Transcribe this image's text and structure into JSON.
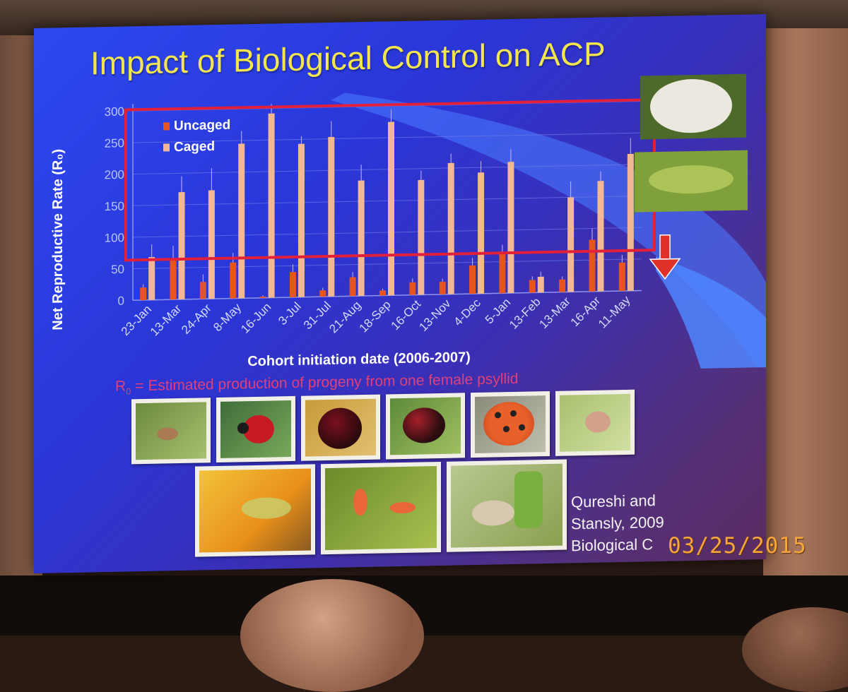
{
  "slide": {
    "title": "Impact of Biological Control on ACP",
    "definition": "R",
    "definition_sub": "0",
    "definition_rest": " = Estimated production of progeny from one female psyllid",
    "citation_line1": "Qureshi and",
    "citation_line2": "Stansly, 2009",
    "citation_line3": "Biological C",
    "datestamp": "03/25/2015"
  },
  "colors": {
    "uncaged": "#e8541e",
    "caged": "#f1b893",
    "highlight_box": "#e2203a",
    "arrow": "#e0302a",
    "title": "#f3e54d"
  },
  "chart_data": {
    "type": "bar",
    "ylabel": "Net Reproductive Rate (R₀)",
    "xlabel": "Cohort initiation date (2006-2007)",
    "ylim": [
      0,
      300
    ],
    "yticks": [
      0,
      50,
      100,
      150,
      200,
      250,
      300
    ],
    "categories": [
      "23-Jan",
      "13-Mar",
      "24-Apr",
      "8-May",
      "16-Jun",
      "3-Jul",
      "31-Jul",
      "21-Aug",
      "18-Sep",
      "16-Oct",
      "13-Nov",
      "4-Dec",
      "5-Jan",
      "13-Feb",
      "13-Mar",
      "16-Apr",
      "11-May"
    ],
    "series": [
      {
        "name": "Uncaged",
        "values": [
          20,
          65,
          27,
          57,
          2,
          40,
          10,
          30,
          8,
          20,
          20,
          45,
          62,
          20,
          20,
          82,
          45
        ]
      },
      {
        "name": "Caged",
        "values": [
          68,
          170,
          172,
          245,
          292,
          243,
          253,
          183,
          275,
          182,
          208,
          192,
          208,
          25,
          150,
          175,
          217
        ]
      }
    ],
    "error_bars": {
      "Uncaged": [
        5,
        20,
        12,
        15,
        2,
        12,
        4,
        8,
        3,
        6,
        5,
        12,
        15,
        6,
        5,
        18,
        12
      ],
      "Caged": [
        20,
        25,
        35,
        20,
        15,
        12,
        25,
        25,
        20,
        15,
        15,
        18,
        20,
        8,
        25,
        15,
        25
      ]
    },
    "legend": "top-left",
    "grid": true
  },
  "photos": {
    "row1": [
      "psyllid-on-leaf-photo",
      "red-lady-beetle-photo",
      "dark-lady-beetle-photo",
      "black-lady-beetle-photo",
      "spotted-lady-beetle-photo",
      "spider-photo"
    ],
    "row2": [
      "lacewing-on-flower-photo",
      "larvae-on-leaf-photo",
      "parasitized-nymph-photo"
    ]
  }
}
